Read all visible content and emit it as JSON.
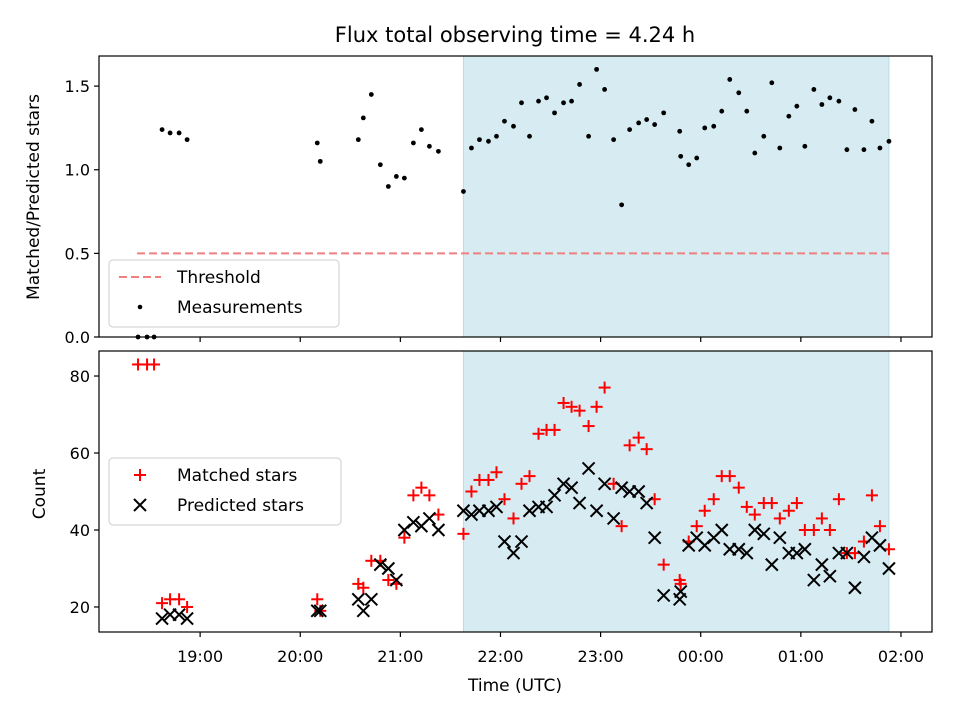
{
  "chart_data": [
    {
      "type": "scatter",
      "title": "Flux total observing time = 4.24 h",
      "ylabel": "Matched/Predicted stars",
      "xlabel": "",
      "x_unit": "hours after 18:00 UTC",
      "xlim": [
        17.99,
        26.31
      ],
      "ylim": [
        0.0,
        1.68
      ],
      "yticks": [
        0.0,
        0.5,
        1.0,
        1.5
      ],
      "ytick_labels": [
        "0.0",
        "0.5",
        "1.0",
        "1.5"
      ],
      "observing_window": [
        21.63,
        25.88
      ],
      "legend": {
        "position": "lower-left",
        "entries": [
          "Threshold",
          "Measurements"
        ]
      },
      "series": [
        {
          "name": "Threshold",
          "style": "dashed-line",
          "color": "#f08080",
          "x": [
            18.37,
            25.88
          ],
          "y": [
            0.5,
            0.5
          ]
        },
        {
          "name": "Measurements",
          "style": "dot",
          "color": "#000000",
          "points": [
            [
              18.38,
              0.0
            ],
            [
              18.47,
              0.0
            ],
            [
              18.54,
              0.0
            ],
            [
              18.62,
              1.24
            ],
            [
              18.7,
              1.22
            ],
            [
              18.79,
              1.22
            ],
            [
              18.87,
              1.18
            ],
            [
              20.17,
              1.16
            ],
            [
              20.2,
              1.05
            ],
            [
              20.58,
              1.18
            ],
            [
              20.63,
              1.31
            ],
            [
              20.71,
              1.45
            ],
            [
              20.8,
              1.03
            ],
            [
              20.88,
              0.9
            ],
            [
              20.96,
              0.96
            ],
            [
              21.04,
              0.95
            ],
            [
              21.13,
              1.16
            ],
            [
              21.21,
              1.24
            ],
            [
              21.29,
              1.14
            ],
            [
              21.38,
              1.11
            ],
            [
              21.63,
              0.87
            ],
            [
              21.71,
              1.13
            ],
            [
              21.79,
              1.18
            ],
            [
              21.88,
              1.17
            ],
            [
              21.96,
              1.2
            ],
            [
              22.04,
              1.29
            ],
            [
              22.13,
              1.26
            ],
            [
              22.21,
              1.4
            ],
            [
              22.29,
              1.2
            ],
            [
              22.38,
              1.41
            ],
            [
              22.46,
              1.43
            ],
            [
              22.54,
              1.34
            ],
            [
              22.63,
              1.4
            ],
            [
              22.71,
              1.41
            ],
            [
              22.79,
              1.51
            ],
            [
              22.88,
              1.2
            ],
            [
              22.96,
              1.6
            ],
            [
              23.04,
              1.48
            ],
            [
              23.13,
              1.18
            ],
            [
              23.21,
              0.79
            ],
            [
              23.29,
              1.24
            ],
            [
              23.38,
              1.28
            ],
            [
              23.46,
              1.3
            ],
            [
              23.54,
              1.27
            ],
            [
              23.63,
              1.34
            ],
            [
              23.79,
              1.23
            ],
            [
              23.8,
              1.08
            ],
            [
              23.88,
              1.03
            ],
            [
              23.96,
              1.07
            ],
            [
              24.04,
              1.25
            ],
            [
              24.13,
              1.26
            ],
            [
              24.21,
              1.35
            ],
            [
              24.29,
              1.54
            ],
            [
              24.38,
              1.46
            ],
            [
              24.46,
              1.35
            ],
            [
              24.54,
              1.1
            ],
            [
              24.63,
              1.2
            ],
            [
              24.71,
              1.52
            ],
            [
              24.79,
              1.13
            ],
            [
              24.88,
              1.32
            ],
            [
              24.96,
              1.38
            ],
            [
              25.04,
              1.14
            ],
            [
              25.13,
              1.48
            ],
            [
              25.21,
              1.39
            ],
            [
              25.29,
              1.43
            ],
            [
              25.38,
              1.41
            ],
            [
              25.46,
              1.12
            ],
            [
              25.54,
              1.36
            ],
            [
              25.63,
              1.12
            ],
            [
              25.71,
              1.29
            ],
            [
              25.79,
              1.13
            ],
            [
              25.88,
              1.17
            ]
          ]
        }
      ]
    },
    {
      "type": "scatter",
      "ylabel": "Count",
      "xlabel": "Time (UTC)",
      "x_unit": "hours after 18:00 UTC",
      "xlim": [
        17.99,
        26.31
      ],
      "ylim": [
        13.5,
        86.5
      ],
      "yticks": [
        20,
        40,
        60,
        80
      ],
      "ytick_labels": [
        "20",
        "40",
        "60",
        "80"
      ],
      "xticks": [
        19,
        20,
        21,
        22,
        23,
        24,
        25,
        26
      ],
      "xtick_labels": [
        "19:00",
        "20:00",
        "21:00",
        "22:00",
        "23:00",
        "00:00",
        "01:00",
        "02:00"
      ],
      "observing_window": [
        21.63,
        25.88
      ],
      "legend": {
        "position": "center-left",
        "entries": [
          "Matched stars",
          "Predicted stars"
        ]
      },
      "series": [
        {
          "name": "Matched stars",
          "marker": "+",
          "color": "#ff0000",
          "points": [
            [
              18.38,
              83
            ],
            [
              18.47,
              83
            ],
            [
              18.54,
              83
            ],
            [
              18.62,
              21
            ],
            [
              18.7,
              22
            ],
            [
              18.79,
              22
            ],
            [
              18.87,
              20
            ],
            [
              20.17,
              22
            ],
            [
              20.2,
              19
            ],
            [
              20.58,
              26
            ],
            [
              20.63,
              25
            ],
            [
              20.71,
              32
            ],
            [
              20.8,
              32
            ],
            [
              20.88,
              27
            ],
            [
              20.96,
              26
            ],
            [
              21.04,
              38
            ],
            [
              21.13,
              49
            ],
            [
              21.21,
              51
            ],
            [
              21.29,
              49
            ],
            [
              21.38,
              44
            ],
            [
              21.63,
              39
            ],
            [
              21.71,
              50
            ],
            [
              21.79,
              53
            ],
            [
              21.88,
              53
            ],
            [
              21.96,
              55
            ],
            [
              22.04,
              48
            ],
            [
              22.13,
              43
            ],
            [
              22.21,
              52
            ],
            [
              22.29,
              54
            ],
            [
              22.38,
              65
            ],
            [
              22.46,
              66
            ],
            [
              22.54,
              66
            ],
            [
              22.63,
              73
            ],
            [
              22.71,
              72
            ],
            [
              22.79,
              71
            ],
            [
              22.88,
              67
            ],
            [
              22.96,
              72
            ],
            [
              23.04,
              77
            ],
            [
              23.13,
              52
            ],
            [
              23.21,
              41
            ],
            [
              23.29,
              62
            ],
            [
              23.38,
              64
            ],
            [
              23.46,
              61
            ],
            [
              23.54,
              48
            ],
            [
              23.63,
              31
            ],
            [
              23.79,
              27
            ],
            [
              23.8,
              26
            ],
            [
              23.88,
              37
            ],
            [
              23.96,
              41
            ],
            [
              24.04,
              45
            ],
            [
              24.13,
              48
            ],
            [
              24.21,
              54
            ],
            [
              24.29,
              54
            ],
            [
              24.38,
              51
            ],
            [
              24.46,
              46
            ],
            [
              24.54,
              44
            ],
            [
              24.63,
              47
            ],
            [
              24.71,
              47
            ],
            [
              24.79,
              43
            ],
            [
              24.88,
              45
            ],
            [
              24.96,
              47
            ],
            [
              25.04,
              40
            ],
            [
              25.13,
              40
            ],
            [
              25.21,
              43
            ],
            [
              25.29,
              40
            ],
            [
              25.38,
              48
            ],
            [
              25.46,
              34
            ],
            [
              25.54,
              34
            ],
            [
              25.63,
              37
            ],
            [
              25.71,
              49
            ],
            [
              25.79,
              41
            ],
            [
              25.88,
              35
            ]
          ]
        },
        {
          "name": "Predicted stars",
          "marker": "x",
          "color": "#000000",
          "points": [
            [
              18.62,
              17
            ],
            [
              18.7,
              18
            ],
            [
              18.79,
              18
            ],
            [
              18.87,
              17
            ],
            [
              20.17,
              19
            ],
            [
              20.2,
              19
            ],
            [
              20.58,
              22
            ],
            [
              20.63,
              19
            ],
            [
              20.71,
              22
            ],
            [
              20.8,
              31
            ],
            [
              20.88,
              30
            ],
            [
              20.96,
              27
            ],
            [
              21.04,
              40
            ],
            [
              21.13,
              42
            ],
            [
              21.21,
              41
            ],
            [
              21.29,
              43
            ],
            [
              21.38,
              40
            ],
            [
              21.63,
              45
            ],
            [
              21.71,
              44
            ],
            [
              21.79,
              45
            ],
            [
              21.88,
              45
            ],
            [
              21.96,
              46
            ],
            [
              22.04,
              37
            ],
            [
              22.13,
              34
            ],
            [
              22.21,
              37
            ],
            [
              22.29,
              45
            ],
            [
              22.38,
              46
            ],
            [
              22.46,
              46
            ],
            [
              22.54,
              49
            ],
            [
              22.63,
              52
            ],
            [
              22.71,
              51
            ],
            [
              22.79,
              47
            ],
            [
              22.88,
              56
            ],
            [
              22.96,
              45
            ],
            [
              23.04,
              52
            ],
            [
              23.13,
              43
            ],
            [
              23.21,
              51
            ],
            [
              23.29,
              50
            ],
            [
              23.38,
              50
            ],
            [
              23.46,
              47
            ],
            [
              23.54,
              38
            ],
            [
              23.63,
              23
            ],
            [
              23.79,
              22
            ],
            [
              23.8,
              24
            ],
            [
              23.88,
              36
            ],
            [
              23.96,
              38
            ],
            [
              24.04,
              36
            ],
            [
              24.13,
              38
            ],
            [
              24.21,
              40
            ],
            [
              24.29,
              35
            ],
            [
              24.38,
              35
            ],
            [
              24.46,
              34
            ],
            [
              24.54,
              40
            ],
            [
              24.63,
              39
            ],
            [
              24.71,
              31
            ],
            [
              24.79,
              38
            ],
            [
              24.88,
              34
            ],
            [
              24.96,
              34
            ],
            [
              25.04,
              35
            ],
            [
              25.13,
              27
            ],
            [
              25.21,
              31
            ],
            [
              25.29,
              28
            ],
            [
              25.38,
              34
            ],
            [
              25.46,
              34
            ],
            [
              25.54,
              25
            ],
            [
              25.63,
              33
            ],
            [
              25.71,
              38
            ],
            [
              25.79,
              36
            ],
            [
              25.88,
              30
            ]
          ]
        }
      ]
    }
  ]
}
